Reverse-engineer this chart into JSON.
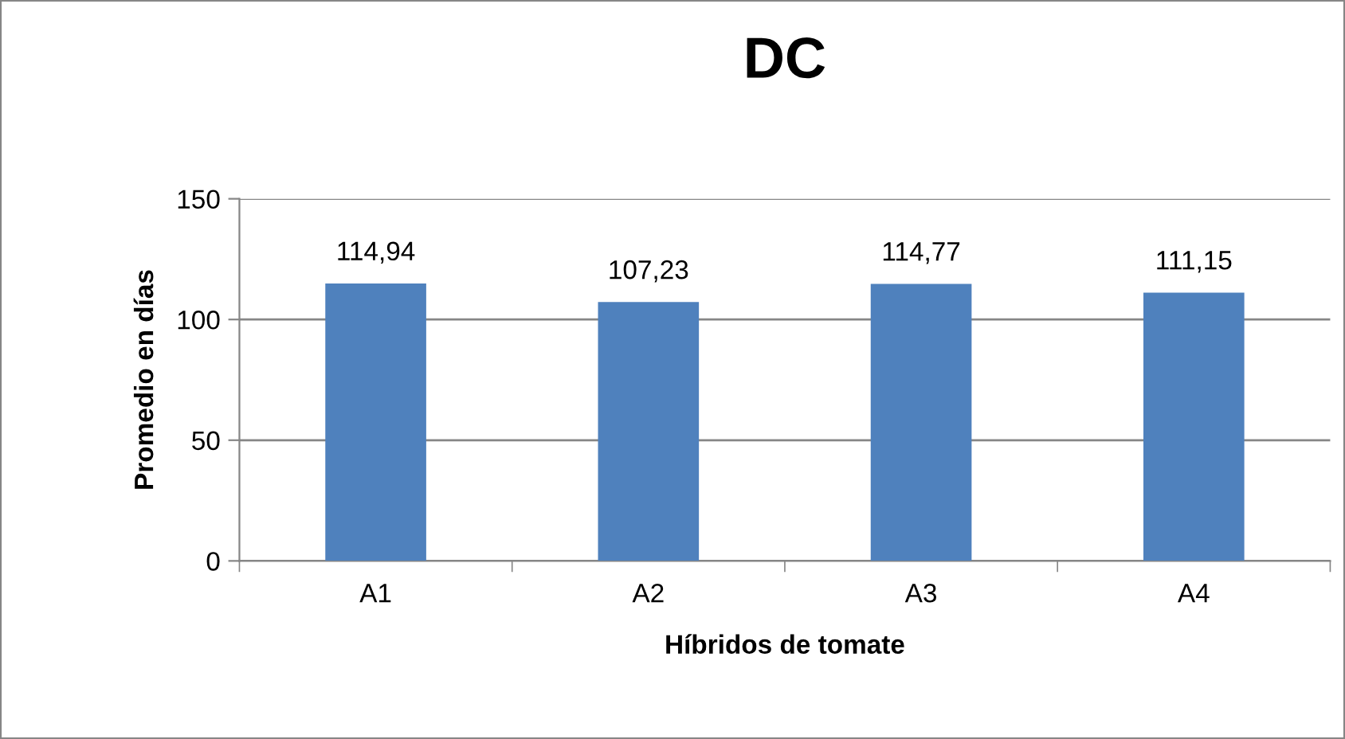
{
  "chart_data": {
    "type": "bar",
    "title": "DC",
    "xlabel": "Híbridos de tomate",
    "ylabel": "Promedio en días",
    "categories": [
      "A1",
      "A2",
      "A3",
      "A4"
    ],
    "values": [
      114.94,
      107.23,
      114.77,
      111.15
    ],
    "value_labels": [
      "114,94",
      "107,23",
      "114,77",
      "111,15"
    ],
    "color": "#4f81bd",
    "ylim": [
      0,
      150
    ],
    "yticks": [
      0,
      50,
      100,
      150
    ],
    "grid": "y",
    "legend": false
  }
}
